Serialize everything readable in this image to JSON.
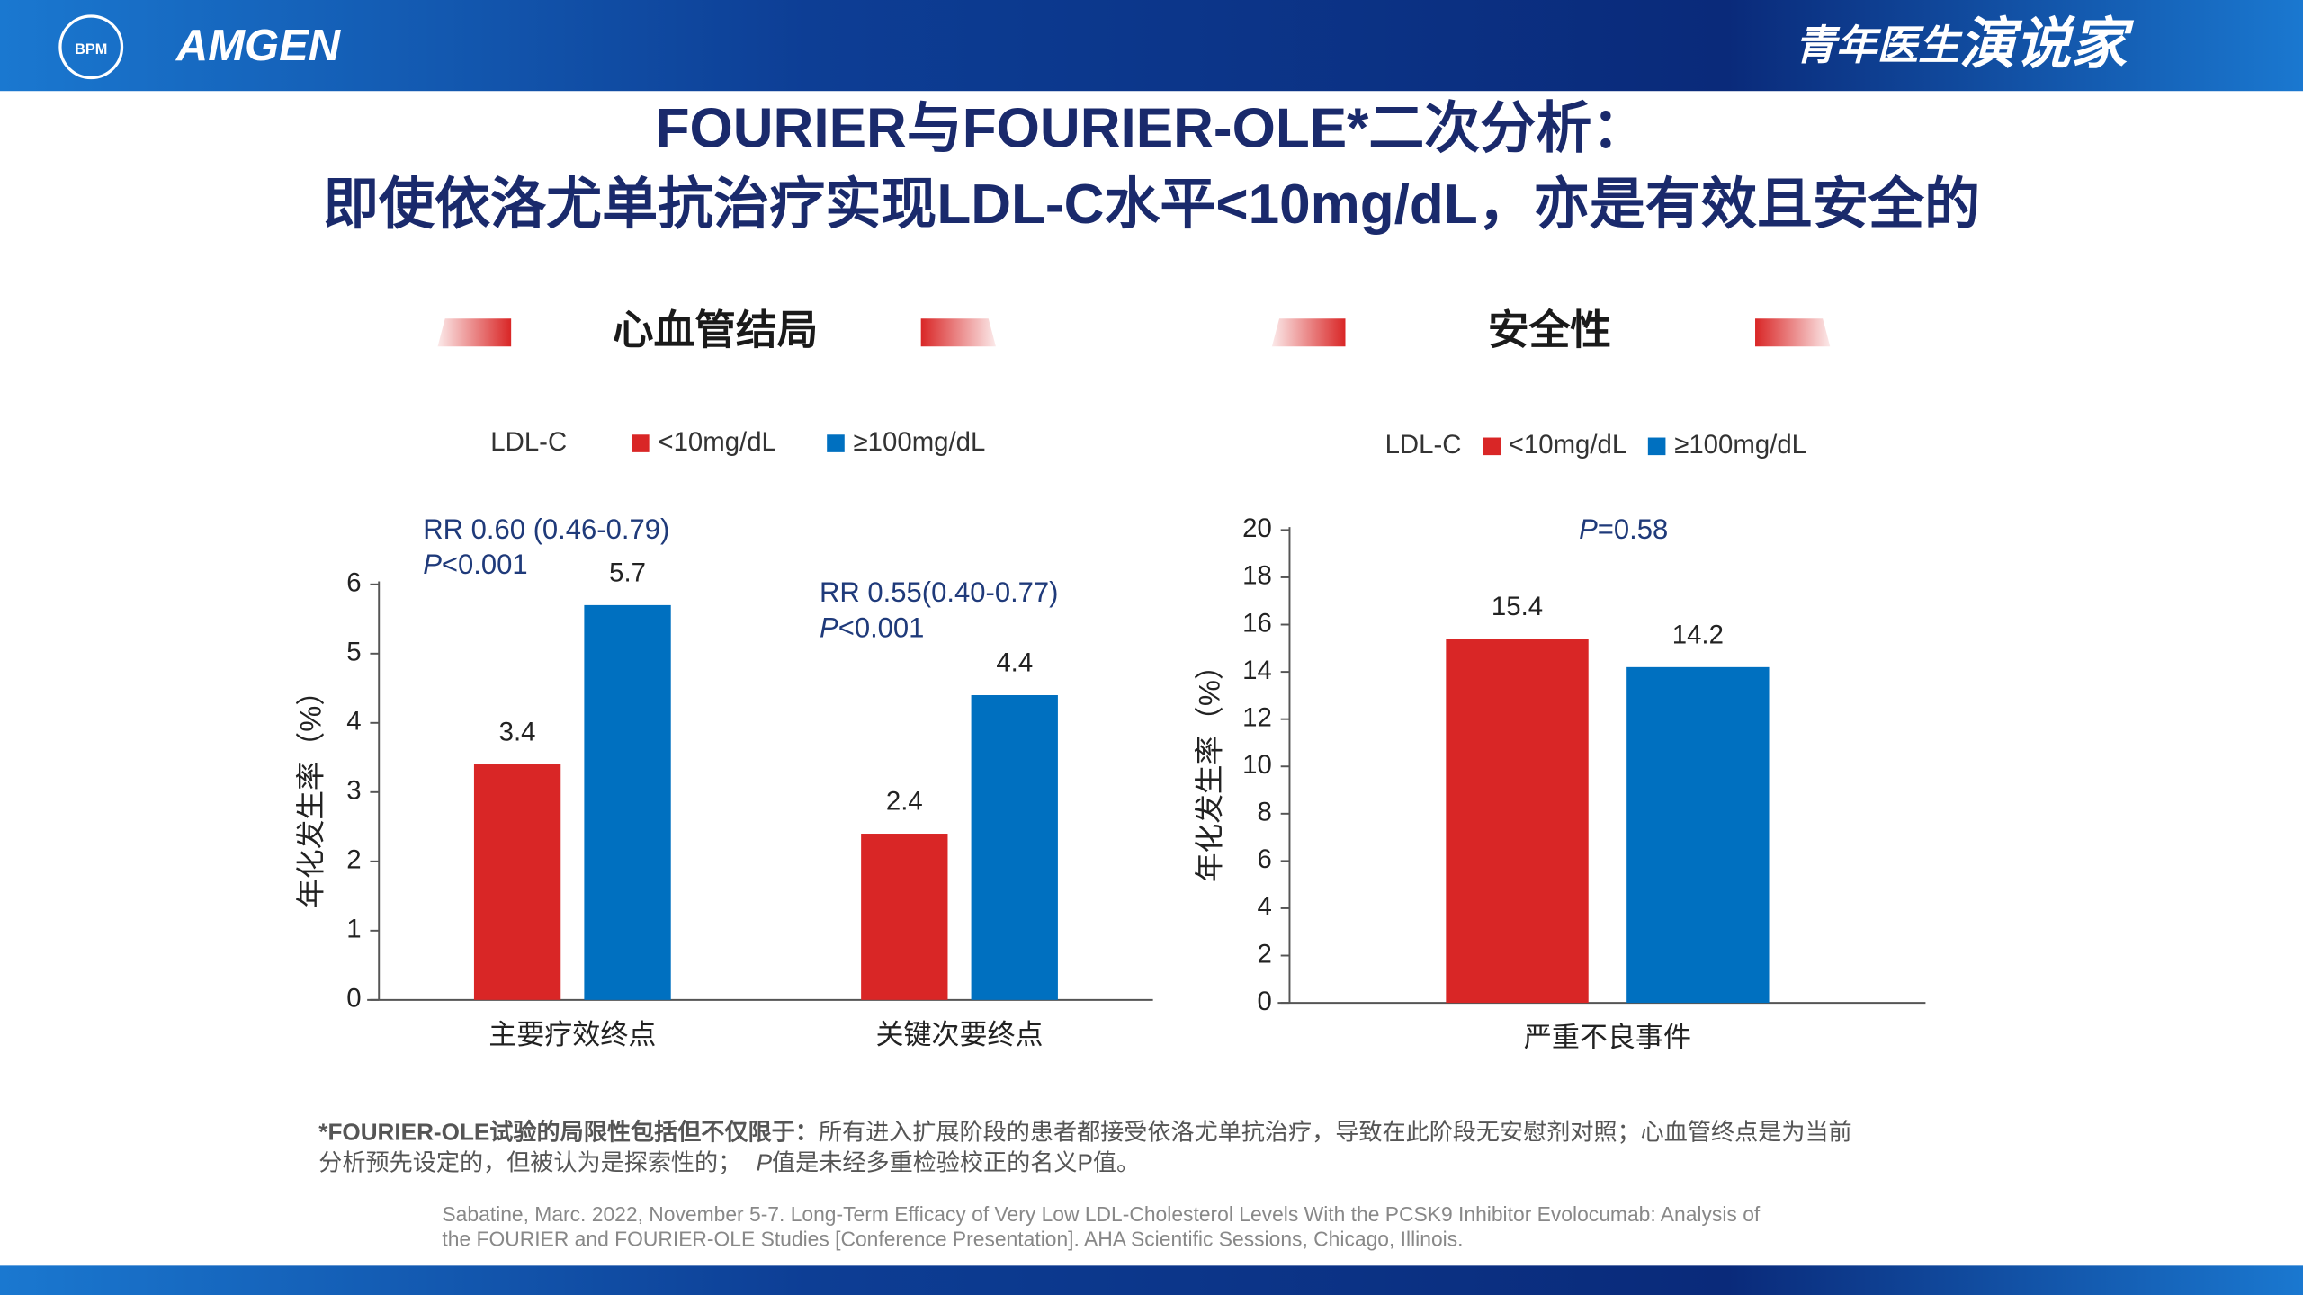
{
  "header": {
    "org_logo": "BPM",
    "brand": "AMGEN",
    "program_a": "青年医生",
    "program_b": "演说家"
  },
  "title_lines": [
    "FOURIER与FOURIER-OLE*二次分析：",
    "即使依洛尤单抗治疗实现LDL-C水平<10mg/dL，亦是有效且安全的"
  ],
  "chart_data": [
    {
      "type": "bar",
      "title": "心血管结局",
      "legend_title": "LDL-C",
      "categories": [
        "主要疗效终点",
        "关键次要终点"
      ],
      "series": [
        {
          "name": "<10mg/dL",
          "color": "#d92626",
          "values": [
            3.4,
            2.4
          ]
        },
        {
          "name": "≥100mg/dL",
          "color": "#0070c0",
          "values": [
            5.7,
            4.4
          ]
        }
      ],
      "ylabel": "年化发生率（%）",
      "ylim": [
        0,
        6
      ],
      "yticks": [
        0,
        1,
        2,
        3,
        4,
        5,
        6
      ],
      "annotations": [
        {
          "lines": [
            {
              "text": "RR 0.60 (0.46-0.79)"
            },
            {
              "italic": "P",
              "text": "<0.001"
            }
          ]
        },
        {
          "lines": [
            {
              "text": "RR 0.55(0.40-0.77)"
            },
            {
              "italic": "P",
              "text": "<0.001"
            }
          ]
        }
      ]
    },
    {
      "type": "bar",
      "title": "安全性",
      "legend_title": "LDL-C",
      "categories": [
        "严重不良事件"
      ],
      "series": [
        {
          "name": "<10mg/dL",
          "color": "#d92626",
          "values": [
            15.4
          ]
        },
        {
          "name": "≥100mg/dL",
          "color": "#0070c0",
          "values": [
            14.2
          ]
        }
      ],
      "ylabel": "年化发生率（%）",
      "ylim": [
        0,
        20
      ],
      "yticks": [
        0,
        2,
        4,
        6,
        8,
        10,
        12,
        14,
        16,
        18,
        20
      ],
      "annotations": [
        {
          "lines": [
            {
              "italic": "P",
              "text": "=0.58"
            }
          ]
        }
      ]
    }
  ],
  "footnote": {
    "bold": "*FOURIER-OLE试验的局限性包括但不仅限于：",
    "line1": "所有进入扩展阶段的患者都接受依洛尤单抗治疗，导致在此阶段无安慰剂对照；心血管终点是为当前",
    "line2": "分析预先设定的，但被认为是探索性的；",
    "line2_italic": "P",
    "line2_end": "值是未经多重检验校正的名义P值。"
  },
  "reference": [
    "Sabatine, Marc. 2022, November 5-7. Long-Term Efficacy of Very Low LDL-Cholesterol Levels With the PCSK9 Inhibitor Evolocumab: Analysis of",
    "the FOURIER and FOURIER-OLE Studies [Conference Presentation]. AHA Scientific Sessions, Chicago, Illinois."
  ]
}
